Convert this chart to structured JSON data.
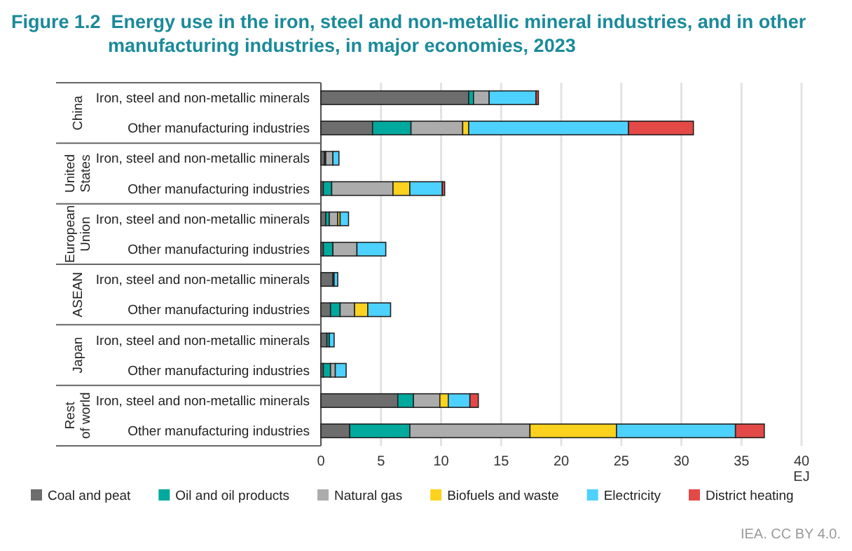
{
  "chart_data": {
    "type": "bar",
    "orientation": "horizontal",
    "stacked": true,
    "title": "Figure 1.2  Energy use in the iron, steel and non-metallic mineral industries, and in other manufacturing industries, in major economies, 2023",
    "xlabel": "EJ",
    "categories": [
      "Iron, steel and non-metallic minerals",
      "Other manufacturing industries",
      "Iron, steel and non-metallic minerals",
      "Other manufacturing industries",
      "Iron, steel and non-metallic minerals",
      "Other manufacturing industries",
      "Iron, steel and non-metallic minerals",
      "Other manufacturing industries",
      "Iron, steel and non-metallic minerals",
      "Other manufacturing industries",
      "Iron, steel and non-metallic minerals",
      "Other manufacturing industries"
    ],
    "series": [
      {
        "name": "Coal and peat",
        "color": "#6d6d6d",
        "values": [
          12.3,
          4.3,
          0.3,
          0.2,
          0.4,
          0.2,
          1.0,
          0.8,
          0.5,
          0.2,
          6.4,
          2.4
        ]
      },
      {
        "name": "Oil and oil products",
        "color": "#00a99d",
        "values": [
          0.4,
          3.2,
          0.1,
          0.7,
          0.3,
          0.8,
          0.1,
          0.8,
          0.2,
          0.6,
          1.3,
          5.0
        ]
      },
      {
        "name": "Natural gas",
        "color": "#acacac",
        "values": [
          1.3,
          4.3,
          0.6,
          5.1,
          0.7,
          2.0,
          0,
          1.2,
          0,
          0.4,
          2.2,
          10.0
        ]
      },
      {
        "name": "Biofuels and waste",
        "color": "#fdd21f",
        "values": [
          0,
          0.5,
          0,
          1.4,
          0.2,
          0,
          0,
          1.1,
          0,
          0,
          0.7,
          7.2
        ]
      },
      {
        "name": "Electricity",
        "color": "#4dd2ff",
        "values": [
          3.9,
          13.3,
          0.5,
          2.7,
          0.7,
          2.4,
          0.3,
          1.9,
          0.4,
          0.9,
          1.8,
          9.9
        ]
      },
      {
        "name": "District heating",
        "color": "#e34946",
        "values": [
          0.2,
          5.4,
          0,
          0.2,
          0,
          0,
          0,
          0,
          0,
          0,
          0.7,
          2.4
        ]
      }
    ],
    "xlim": [
      0,
      40
    ],
    "xticks": [
      0,
      5,
      10,
      15,
      20,
      25,
      30,
      35,
      40
    ],
    "grid": "x",
    "legend": "bottom",
    "annotations": [
      "China",
      "United States",
      "European Union",
      "ASEAN",
      "Japan",
      "Rest of world",
      "IEA. CC BY 4.0."
    ]
  }
}
